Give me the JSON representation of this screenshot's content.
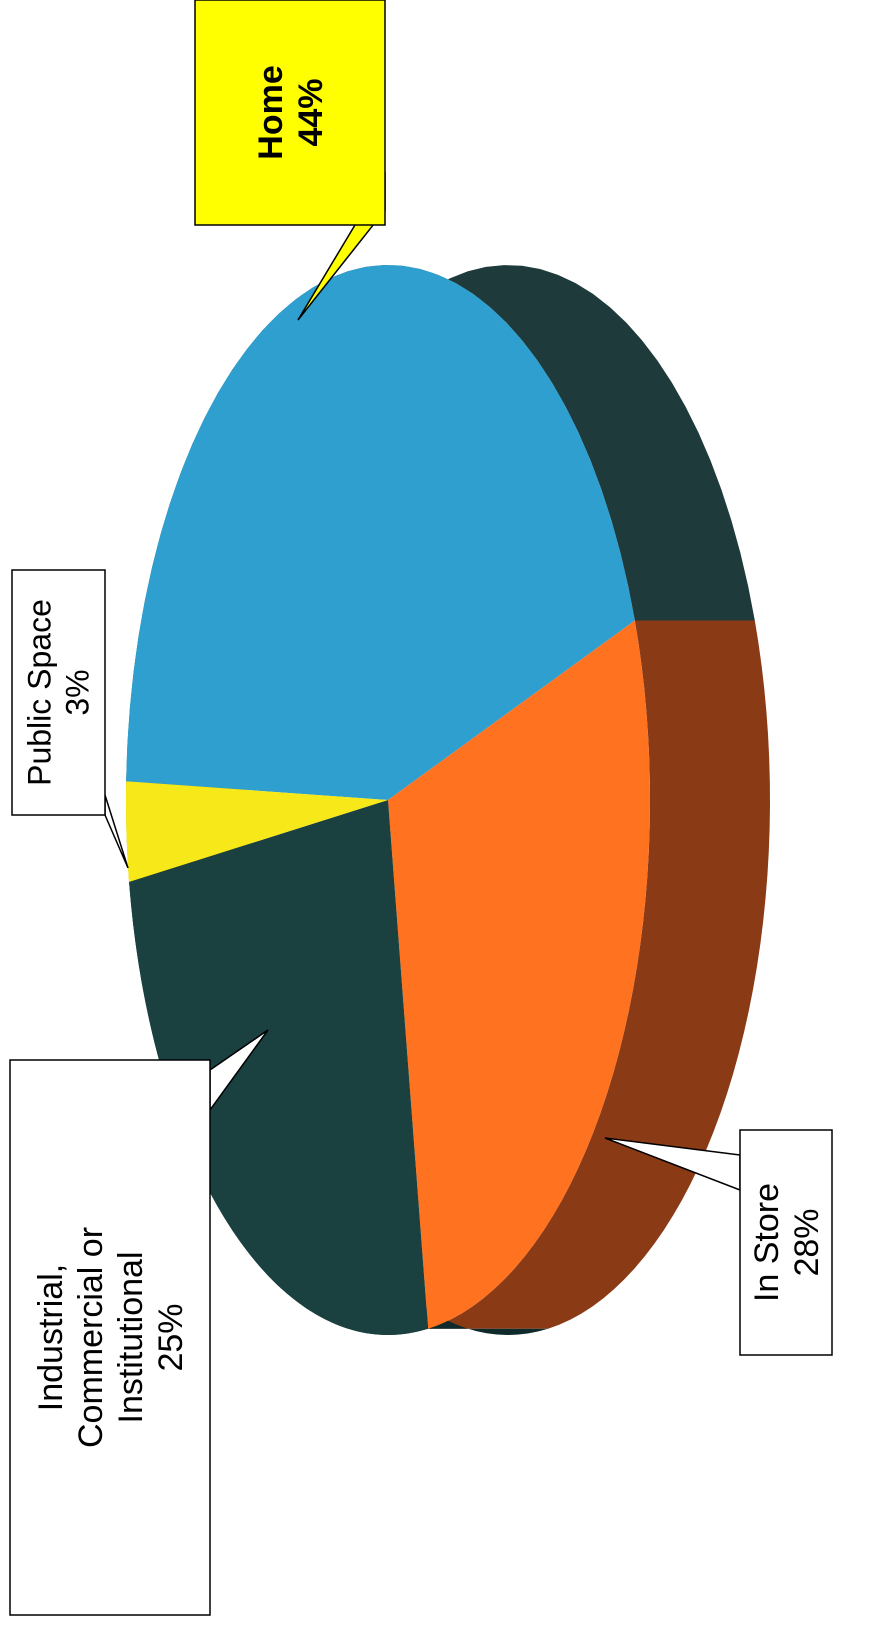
{
  "chart_data": {
    "type": "pie",
    "title": "",
    "slices": [
      {
        "label_lines": [
          "Home"
        ],
        "value_text": "44%",
        "value": 44,
        "color": "#2f9fcf",
        "side_color": "#1f3a3a",
        "callout_color": "#ffff00",
        "bold": true
      },
      {
        "label_lines": [
          "In Store"
        ],
        "value_text": "28%",
        "value": 28,
        "color": "#ff7320",
        "side_color": "#8a3a15",
        "callout_color": "#ffffff",
        "bold": false
      },
      {
        "label_lines": [
          "Industrial,",
          "Commercial or",
          "Institutional"
        ],
        "value_text": "25%",
        "value": 25,
        "color": "#1a4040",
        "side_color": "#0f2a2a",
        "callout_color": "#ffffff",
        "bold": false
      },
      {
        "label_lines": [
          "Public Space"
        ],
        "value_text": "3%",
        "value": 3,
        "color": "#f7e81a",
        "side_color": "#b8a800",
        "callout_color": "#ffffff",
        "bold": false
      }
    ],
    "style": "3d-exploded-rotated"
  }
}
